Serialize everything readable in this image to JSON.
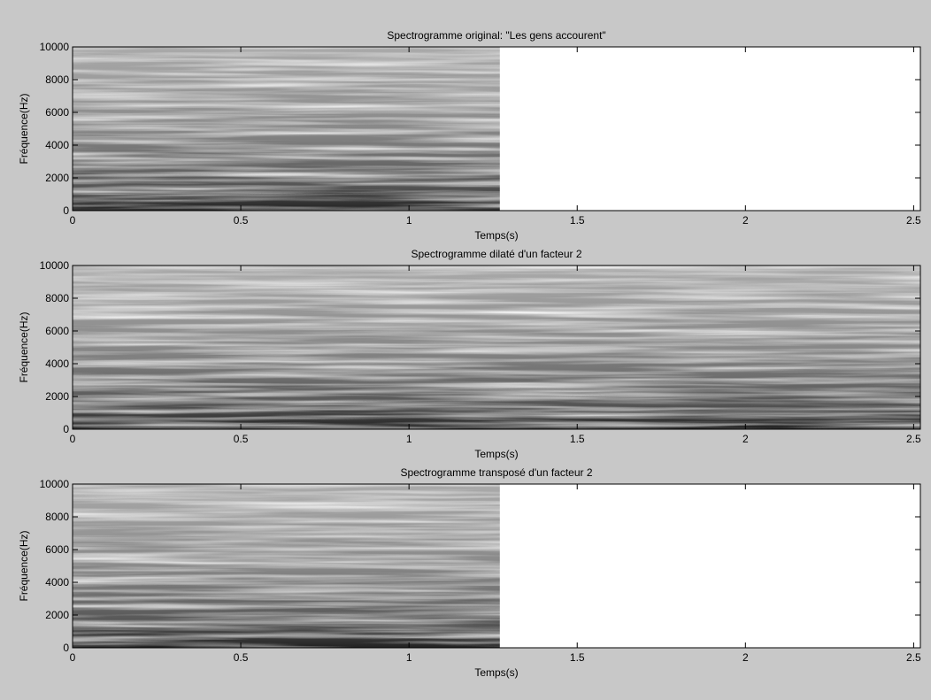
{
  "chart_data": [
    {
      "type": "spectrogram",
      "title": "Spectrogramme original: \"Les gens accourent\"",
      "xlabel": "Temps(s)",
      "ylabel": "Fréquence(Hz)",
      "xlim": [
        0,
        2.52
      ],
      "xticks": [
        0,
        0.5,
        1,
        1.5,
        2,
        2.5
      ],
      "ylim": [
        0,
        10000
      ],
      "yticks": [
        0,
        2000,
        4000,
        6000,
        8000,
        10000
      ],
      "time_range": [
        0,
        1.27
      ]
    },
    {
      "type": "spectrogram",
      "title": "Spectrogramme dilaté d'un facteur 2",
      "xlabel": "Temps(s)",
      "ylabel": "Fréquence(Hz)",
      "xlim": [
        0,
        2.52
      ],
      "xticks": [
        0,
        0.5,
        1,
        1.5,
        2,
        2.5
      ],
      "ylim": [
        0,
        10000
      ],
      "yticks": [
        0,
        2000,
        4000,
        6000,
        8000,
        10000
      ],
      "time_range": [
        0,
        2.52
      ]
    },
    {
      "type": "spectrogram",
      "title": "Spectrogramme transposé d'un facteur 2",
      "xlabel": "Temps(s)",
      "ylabel": "Fréquence(Hz)",
      "xlim": [
        0,
        2.52
      ],
      "xticks": [
        0,
        0.5,
        1,
        1.5,
        2,
        2.5
      ],
      "ylim": [
        0,
        10000
      ],
      "yticks": [
        0,
        2000,
        4000,
        6000,
        8000,
        10000
      ],
      "time_range": [
        0,
        1.27
      ]
    }
  ]
}
